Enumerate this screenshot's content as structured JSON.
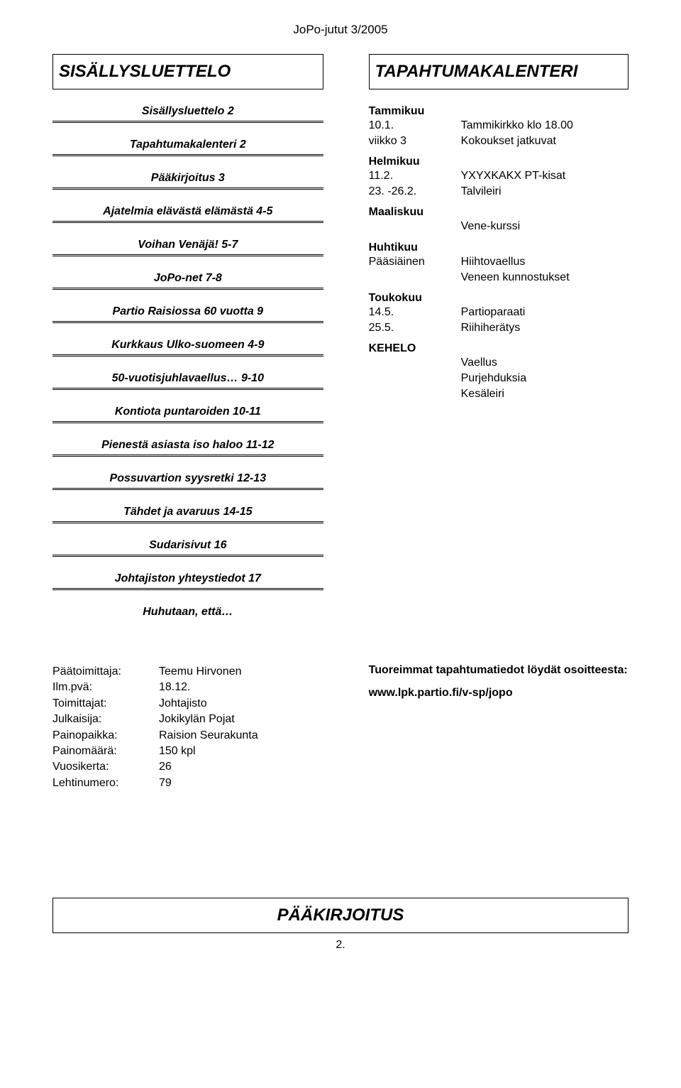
{
  "running_header": "JoPo-jutut 3/2005",
  "left_title": "SISÄLLYSLUETTELO",
  "right_title": "TAPAHTUMAKALENTERI",
  "toc": [
    "Sisällysluettelo 2",
    "Tapahtumakalenteri 2",
    "Pääkirjoitus 3",
    "Ajatelmia elävästä elämästä 4-5",
    "Voihan Venäjä! 5-7",
    "JoPo-net 7-8",
    "Partio Raisiossa 60 vuotta 9",
    "Kurkkaus Ulko-suomeen 4-9",
    "50-vuotisjuhlavaellus… 9-10",
    "Kontiota puntaroiden 10-11",
    "Pienestä asiasta iso haloo 11-12",
    "Possuvartion syysretki 12-13",
    "Tähdet ja avaruus 14-15",
    "Sudarisivut 16",
    "Johtajiston yhteystiedot 17",
    "Huhutaan, että…"
  ],
  "months": {
    "tammi": {
      "head": "Tammikuu",
      "r1k": "10.1.",
      "r1v": "Tammikirkko klo 18.00",
      "r2k": "viikko 3",
      "r2v": "Kokoukset jatkuvat"
    },
    "helmi": {
      "head": "Helmikuu",
      "r1k": "11.2.",
      "r1v": "YXYXKAKX PT-kisat",
      "r2k": "23. -26.2.",
      "r2v": "Talvileiri"
    },
    "maalis": {
      "head": "Maaliskuu",
      "r1k": "",
      "r1v": "Vene-kurssi"
    },
    "huhti": {
      "head": "Huhtikuu",
      "r1k": "Pääsiäinen",
      "r1v": "Hiihtovaellus",
      "r2k": "",
      "r2v": "Veneen kunnostukset"
    },
    "touko": {
      "head": "Toukokuu",
      "r1k": "14.5.",
      "r1v": "Partioparaati",
      "r2k": "25.5.",
      "r2v": "Riihiherätys"
    },
    "kehelo": {
      "head": "KEHELO",
      "r1k": "",
      "r1v": "Vaellus",
      "r2k": "",
      "r2v": "Purjehduksia",
      "r3k": "",
      "r3v": "Kesäleiri"
    }
  },
  "imprint": {
    "r1k": "Päätoimittaja:",
    "r1v": "Teemu Hirvonen",
    "r2k": "Ilm.pvä:",
    "r2v": "18.12.",
    "r3k": "Toimittajat:",
    "r3v": "Johtajisto",
    "r4k": "Julkaisija:",
    "r4v": "Jokikylän Pojat",
    "r5k": "Painopaikka:",
    "r5v": "Raision Seurakunta",
    "r6k": "Painomäärä:",
    "r6v": "150 kpl",
    "r7k": "Vuosikerta:",
    "r7v": "26",
    "r8k": "Lehtinumero:",
    "r8v": "79"
  },
  "more": {
    "head": "Tuoreimmat tapahtumatiedot löydät osoitteesta:",
    "url": "www.lpk.partio.fi/v-sp/jopo"
  },
  "footer_title": "PÄÄKIRJOITUS",
  "page_number": "2."
}
